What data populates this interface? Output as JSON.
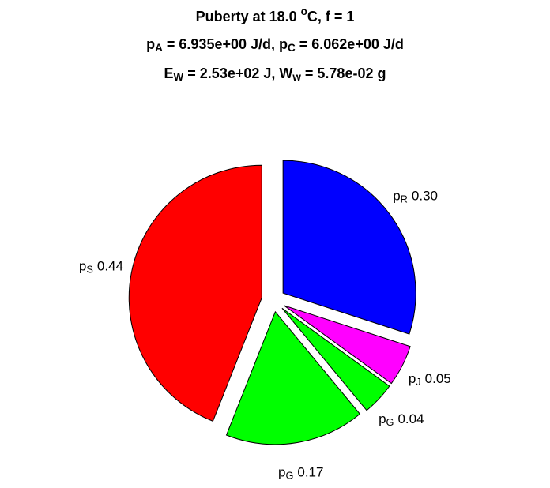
{
  "chart_data": {
    "type": "pie",
    "title": [
      [
        {
          "text": "Puberty at 18.0 "
        },
        {
          "text": "o",
          "script": "sup"
        },
        {
          "text": "C, f = 1"
        }
      ],
      [
        {
          "text": "p"
        },
        {
          "text": "A",
          "script": "sub"
        },
        {
          "text": " = 6.935e+00 J/d,  p"
        },
        {
          "text": "C",
          "script": "sub"
        },
        {
          "text": " = 6.062e+00 J/d"
        }
      ],
      [
        {
          "text": "E"
        },
        {
          "text": "W",
          "script": "sub"
        },
        {
          "text": " = 2.53e+02 J, W"
        },
        {
          "text": "w",
          "script": "sub"
        },
        {
          "text": " = 5.78e-02 g"
        }
      ]
    ],
    "categories": [
      [
        {
          "text": "p"
        },
        {
          "text": "R",
          "script": "sub"
        }
      ],
      [
        {
          "text": "p"
        },
        {
          "text": "J",
          "script": "sub"
        }
      ],
      [
        {
          "text": "p"
        },
        {
          "text": "G",
          "script": "sub"
        }
      ],
      [
        {
          "text": "p"
        },
        {
          "text": "G",
          "script": "sub"
        }
      ],
      [
        {
          "text": "p"
        },
        {
          "text": "S",
          "script": "sub"
        }
      ]
    ],
    "values": [
      0.3,
      0.05,
      0.04,
      0.17,
      0.44
    ],
    "value_labels": [
      "0.30",
      "0.05",
      "0.04",
      "0.17",
      "0.44"
    ],
    "colors": [
      "#0000ff",
      "#ff00ff",
      "#00ff00",
      "#00ff00",
      "#ff0000"
    ],
    "explode": true
  }
}
